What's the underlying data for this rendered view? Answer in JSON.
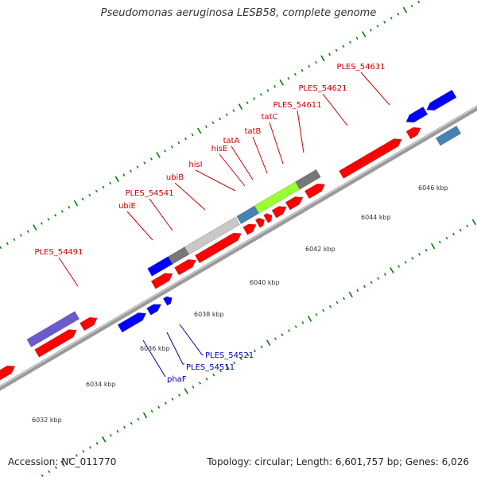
{
  "title": "Pseudomonas aeruginosa LESB58, complete genome",
  "footer": {
    "accession": "Accession: NC_011770",
    "summary": "Topology: circular; Length: 6,601,757 bp; Genes: 6,026"
  },
  "colors": {
    "forward_gene": "#ff0000",
    "reverse_gene": "#0000ff",
    "label_forward": "#cc0000",
    "label_reverse": "#0000aa",
    "backbone": "#888888",
    "tick": "#008000",
    "grey_feature": "#777777",
    "light_grey_feature": "#c8c8c8",
    "lime_feature": "#99ff33",
    "steel_feature": "#4682b4",
    "purple_feature": "#6a5acd"
  },
  "scale_labels": [
    "6032 kbp",
    "6034 kbp",
    "6036 kbp",
    "6038 kbp",
    "6040 kbp",
    "6042 kbp",
    "6044 kbp",
    "6046 kbp"
  ],
  "gene_labels_top": [
    {
      "text": "PLES_54491",
      "strand": "forward"
    },
    {
      "text": "ubiE",
      "strand": "forward"
    },
    {
      "text": "PLES_54541",
      "strand": "forward"
    },
    {
      "text": "ubiB",
      "strand": "forward"
    },
    {
      "text": "hisI",
      "strand": "forward"
    },
    {
      "text": "hisE",
      "strand": "forward"
    },
    {
      "text": "tatA",
      "strand": "forward"
    },
    {
      "text": "tatB",
      "strand": "forward"
    },
    {
      "text": "tatC",
      "strand": "forward"
    },
    {
      "text": "PLES_54611",
      "strand": "forward"
    },
    {
      "text": "PLES_54621",
      "strand": "forward"
    },
    {
      "text": "PLES_54631",
      "strand": "forward"
    }
  ],
  "gene_labels_bottom": [
    {
      "text": "PLES_54521",
      "strand": "reverse"
    },
    {
      "text": "PLES_54511",
      "strand": "reverse"
    },
    {
      "text": "phaF",
      "strand": "reverse"
    }
  ]
}
